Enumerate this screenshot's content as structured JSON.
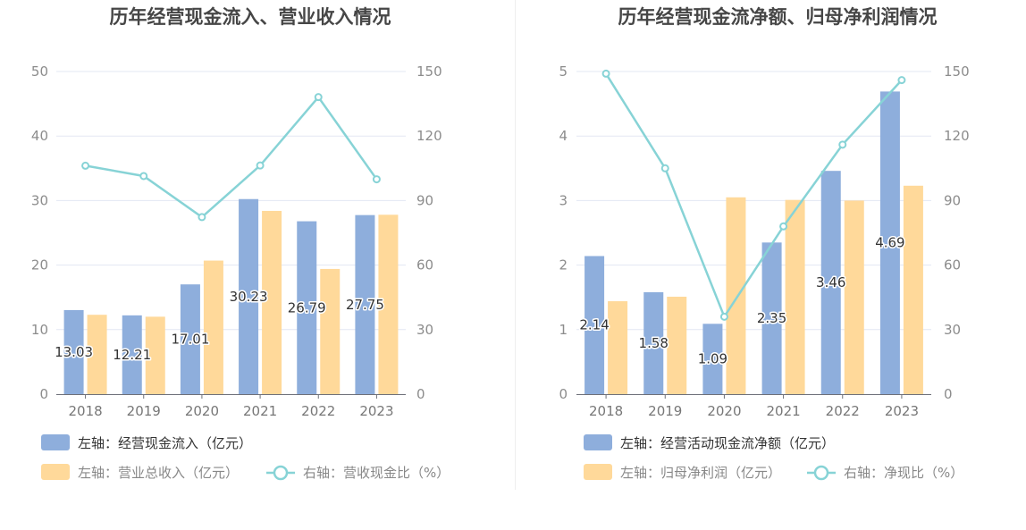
{
  "colors": {
    "bar_primary": "#8eaedc",
    "bar_secondary": "#ffd99a",
    "line": "#87d3d6",
    "legend_text_primary": "#333333",
    "legend_text_secondary": "#888888",
    "grid": "#e3e7f3"
  },
  "chart_data": [
    {
      "type": "bar",
      "title": "历年经营现金流入、营业收入情况",
      "categories": [
        "2018",
        "2019",
        "2020",
        "2021",
        "2022",
        "2023"
      ],
      "y_left": {
        "min": 0,
        "max": 50,
        "ticks": [
          "0",
          "10",
          "20",
          "30",
          "40",
          "50"
        ]
      },
      "y_right": {
        "min": 0,
        "max": 150,
        "ticks": [
          "0",
          "30",
          "60",
          "90",
          "120",
          "150"
        ]
      },
      "series": [
        {
          "name": "左轴：经营现金流入（亿元）",
          "axis": "left",
          "kind": "bar",
          "values": [
            13.03,
            12.21,
            17.01,
            30.23,
            26.79,
            27.75
          ],
          "labels": [
            "13.03",
            "12.21",
            "17.01",
            "30.23",
            "26.79",
            "27.75"
          ]
        },
        {
          "name": "左轴：营业总收入（亿元）",
          "axis": "left",
          "kind": "bar",
          "values": [
            12.3,
            12.0,
            20.7,
            28.4,
            19.4,
            27.8
          ]
        },
        {
          "name": "右轴：营收现金比（%）",
          "axis": "right",
          "kind": "line",
          "values": [
            106.2,
            101.4,
            82.3,
            106.3,
            138.1,
            99.9
          ]
        }
      ],
      "legend_position": "bottom-left",
      "grid": true
    },
    {
      "type": "bar",
      "title": "历年经营现金流净额、归母净利润情况",
      "categories": [
        "2018",
        "2019",
        "2020",
        "2021",
        "2022",
        "2023"
      ],
      "y_left": {
        "min": 0,
        "max": 5,
        "ticks": [
          "0",
          "1",
          "2",
          "3",
          "4",
          "5"
        ]
      },
      "y_right": {
        "min": 0,
        "max": 150,
        "ticks": [
          "0",
          "30",
          "60",
          "90",
          "120",
          "150"
        ]
      },
      "series": [
        {
          "name": "左轴：经营活动现金流净额（亿元）",
          "axis": "left",
          "kind": "bar",
          "values": [
            2.14,
            1.58,
            1.09,
            2.35,
            3.46,
            4.69
          ],
          "labels": [
            "2.14",
            "1.58",
            "1.09",
            "2.35",
            "3.46",
            "4.69"
          ]
        },
        {
          "name": "左轴：归母净利润（亿元）",
          "axis": "left",
          "kind": "bar",
          "values": [
            1.44,
            1.51,
            3.05,
            3.01,
            3.0,
            3.23
          ]
        },
        {
          "name": "右轴：净现比（%）",
          "axis": "right",
          "kind": "line",
          "values": [
            149.0,
            105.0,
            36.0,
            78.0,
            116.0,
            146.0
          ]
        }
      ],
      "legend_position": "bottom-left",
      "grid": true
    }
  ]
}
